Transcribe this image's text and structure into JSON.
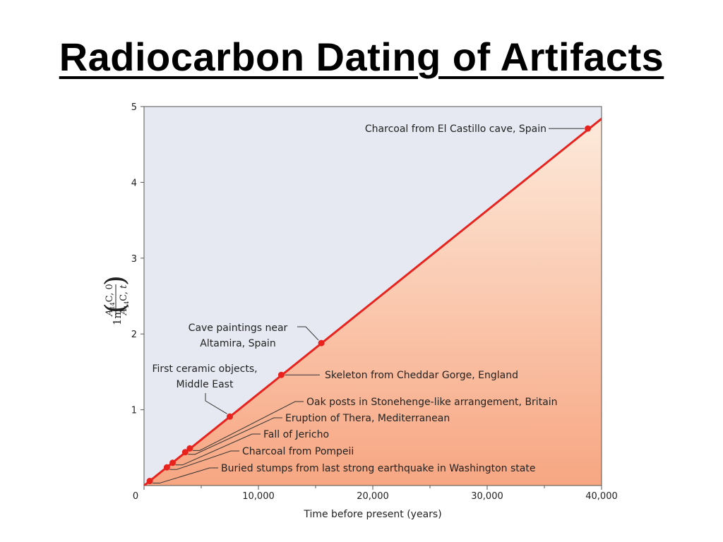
{
  "slide": {
    "title": "Radiocarbon Dating of Artifacts"
  },
  "chart_data": {
    "type": "scatter",
    "xlabel": "Time before present (years)",
    "ylabel": "ln(A14C,0 / A14C,t)",
    "xlim": [
      0,
      40000
    ],
    "ylim": [
      0,
      5
    ],
    "x_ticks": [
      0,
      10000,
      20000,
      30000,
      40000
    ],
    "x_tick_labels": [
      "0",
      "10,000",
      "20,000",
      "30,000",
      "40,000"
    ],
    "y_ticks": [
      1,
      2,
      3,
      4,
      5
    ],
    "y_tick_labels": [
      "1",
      "2",
      "3",
      "4",
      "5"
    ],
    "grid": false,
    "fit_line": {
      "slope_per_year": 0.000121,
      "color": "#e8231e"
    },
    "colors": {
      "upper_region": "#e6e9f1",
      "lower_region_top": "#fdeadb",
      "lower_region_bottom": "#f7a682",
      "line": "#e8231e"
    },
    "points": [
      {
        "x": 500,
        "y": 0.06,
        "label": "Buried stumps from last strong earthquake in Washington state"
      },
      {
        "x": 2000,
        "y": 0.24,
        "label": "Charcoal from Pompeii"
      },
      {
        "x": 2500,
        "y": 0.3,
        "label": "Fall of Jericho"
      },
      {
        "x": 3600,
        "y": 0.44,
        "label": "Eruption of Thera, Mediterranean"
      },
      {
        "x": 4000,
        "y": 0.49,
        "label": "Oak posts in Stonehenge-like arrangement, Britain"
      },
      {
        "x": 7500,
        "y": 0.91,
        "label": "First ceramic objects, Middle East"
      },
      {
        "x": 12000,
        "y": 1.46,
        "label": "Skeleton from Cheddar Gorge, England"
      },
      {
        "x": 15500,
        "y": 1.88,
        "label": "Cave paintings near Altamira, Spain"
      },
      {
        "x": 38800,
        "y": 4.71,
        "label": "Charcoal from El Castillo cave, Spain"
      }
    ],
    "annotation_lines": [
      [
        "Buried stumps from last strong earthquake in Washington state"
      ],
      [
        "Charcoal from Pompeii"
      ],
      [
        "Fall of Jericho"
      ],
      [
        "Eruption of Thera, Mediterranean"
      ],
      [
        "Oak posts in Stonehenge-like arrangement, Britain"
      ],
      [
        "First ceramic objects,",
        "Middle East"
      ],
      [
        "Skeleton from Cheddar Gorge, England"
      ],
      [
        "Cave paintings near",
        "Altamira, Spain"
      ],
      [
        "Charcoal from El Castillo cave, Spain"
      ]
    ]
  }
}
